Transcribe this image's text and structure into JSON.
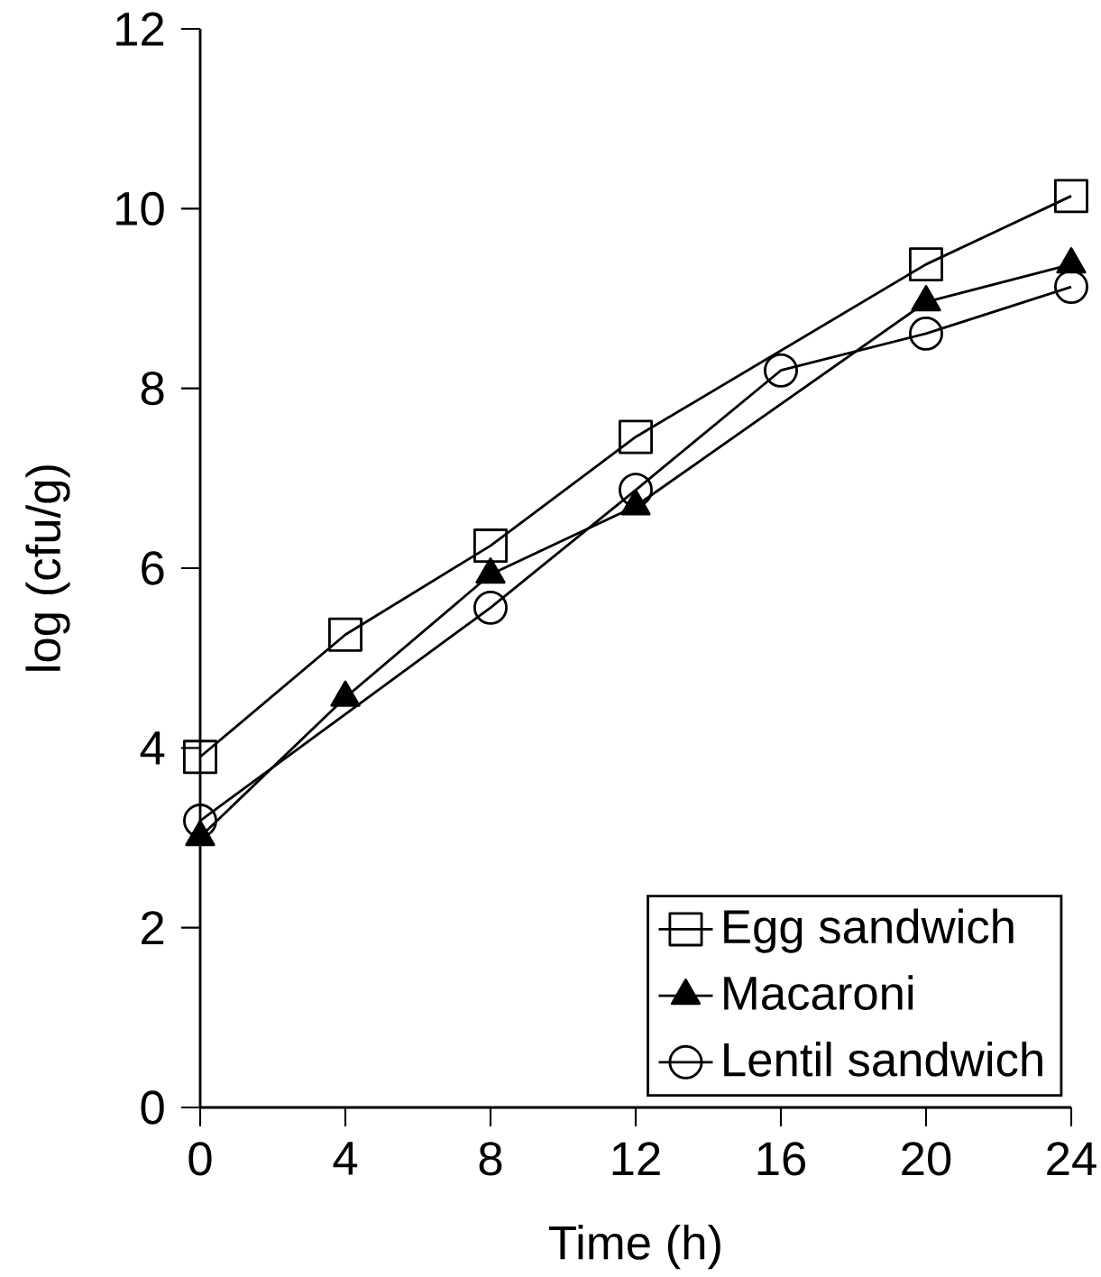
{
  "chart_data": {
    "type": "line",
    "xlabel": "Time (h)",
    "ylabel": "log (cfu/g)",
    "xlim": [
      0,
      24
    ],
    "ylim": [
      0,
      12
    ],
    "xticks": [
      0,
      4,
      8,
      12,
      16,
      20,
      24
    ],
    "yticks": [
      0,
      2,
      4,
      6,
      8,
      10,
      12
    ],
    "legend": "bottom right",
    "grid": false,
    "line_style": "solid",
    "series": [
      {
        "name": "Egg sandwich",
        "color": "#000000",
        "marker": "square",
        "x": [
          0,
          4,
          8,
          12,
          20,
          24
        ],
        "values": [
          3.9,
          5.26,
          6.25,
          7.46,
          9.38,
          10.14
        ]
      },
      {
        "name": "Macaroni",
        "color": "#000000",
        "marker": "triangle",
        "x": [
          0,
          4,
          8,
          12,
          20,
          24
        ],
        "values": [
          3.01,
          4.56,
          5.93,
          6.69,
          8.96,
          9.38
        ]
      },
      {
        "name": "Lentil sandwich",
        "color": "#000000",
        "marker": "circle",
        "x": [
          0,
          8,
          12,
          16,
          20,
          24
        ],
        "values": [
          3.19,
          5.56,
          6.87,
          8.2,
          8.61,
          9.13
        ]
      }
    ]
  }
}
